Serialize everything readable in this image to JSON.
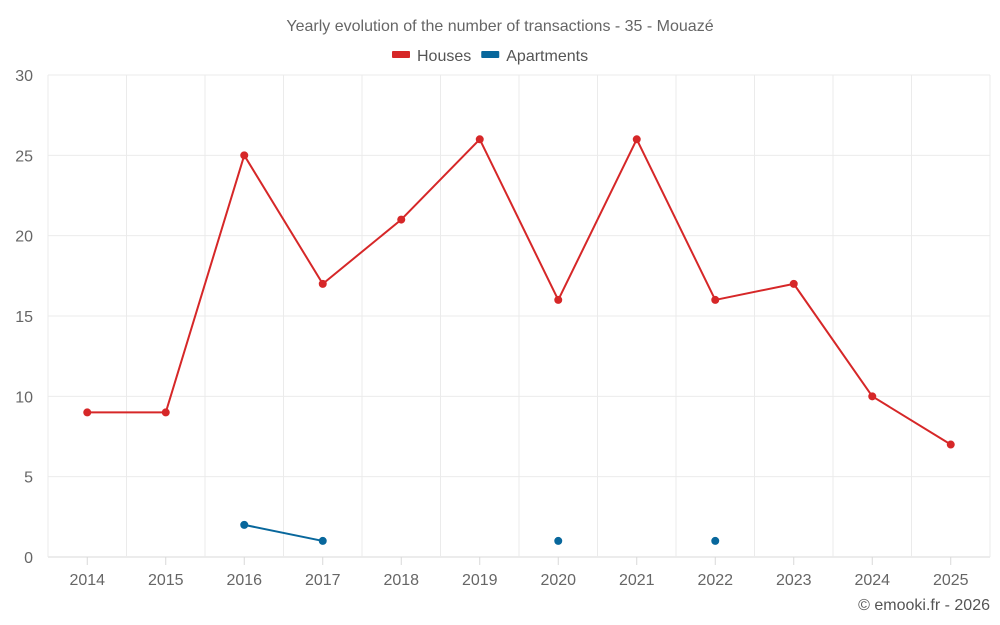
{
  "chart_data": {
    "type": "line",
    "title": "Yearly evolution of the number of transactions - 35 - Mouazé",
    "xlabel": "",
    "ylabel": "",
    "categories": [
      "2014",
      "2015",
      "2016",
      "2017",
      "2018",
      "2019",
      "2020",
      "2021",
      "2022",
      "2023",
      "2024",
      "2025"
    ],
    "ylim": [
      0,
      30
    ],
    "yticks": [
      0,
      5,
      10,
      15,
      20,
      25,
      30
    ],
    "grid": true,
    "legend_position": "top-center",
    "series": [
      {
        "name": "Houses",
        "color": "#d62728",
        "values": [
          9,
          9,
          25,
          17,
          21,
          26,
          16,
          26,
          16,
          17,
          10,
          7
        ]
      },
      {
        "name": "Apartments",
        "color": "#08679c",
        "values": [
          null,
          null,
          2,
          1,
          null,
          null,
          1,
          null,
          1,
          null,
          null,
          null
        ]
      }
    ],
    "credit": "© emooki.fr - 2026"
  }
}
